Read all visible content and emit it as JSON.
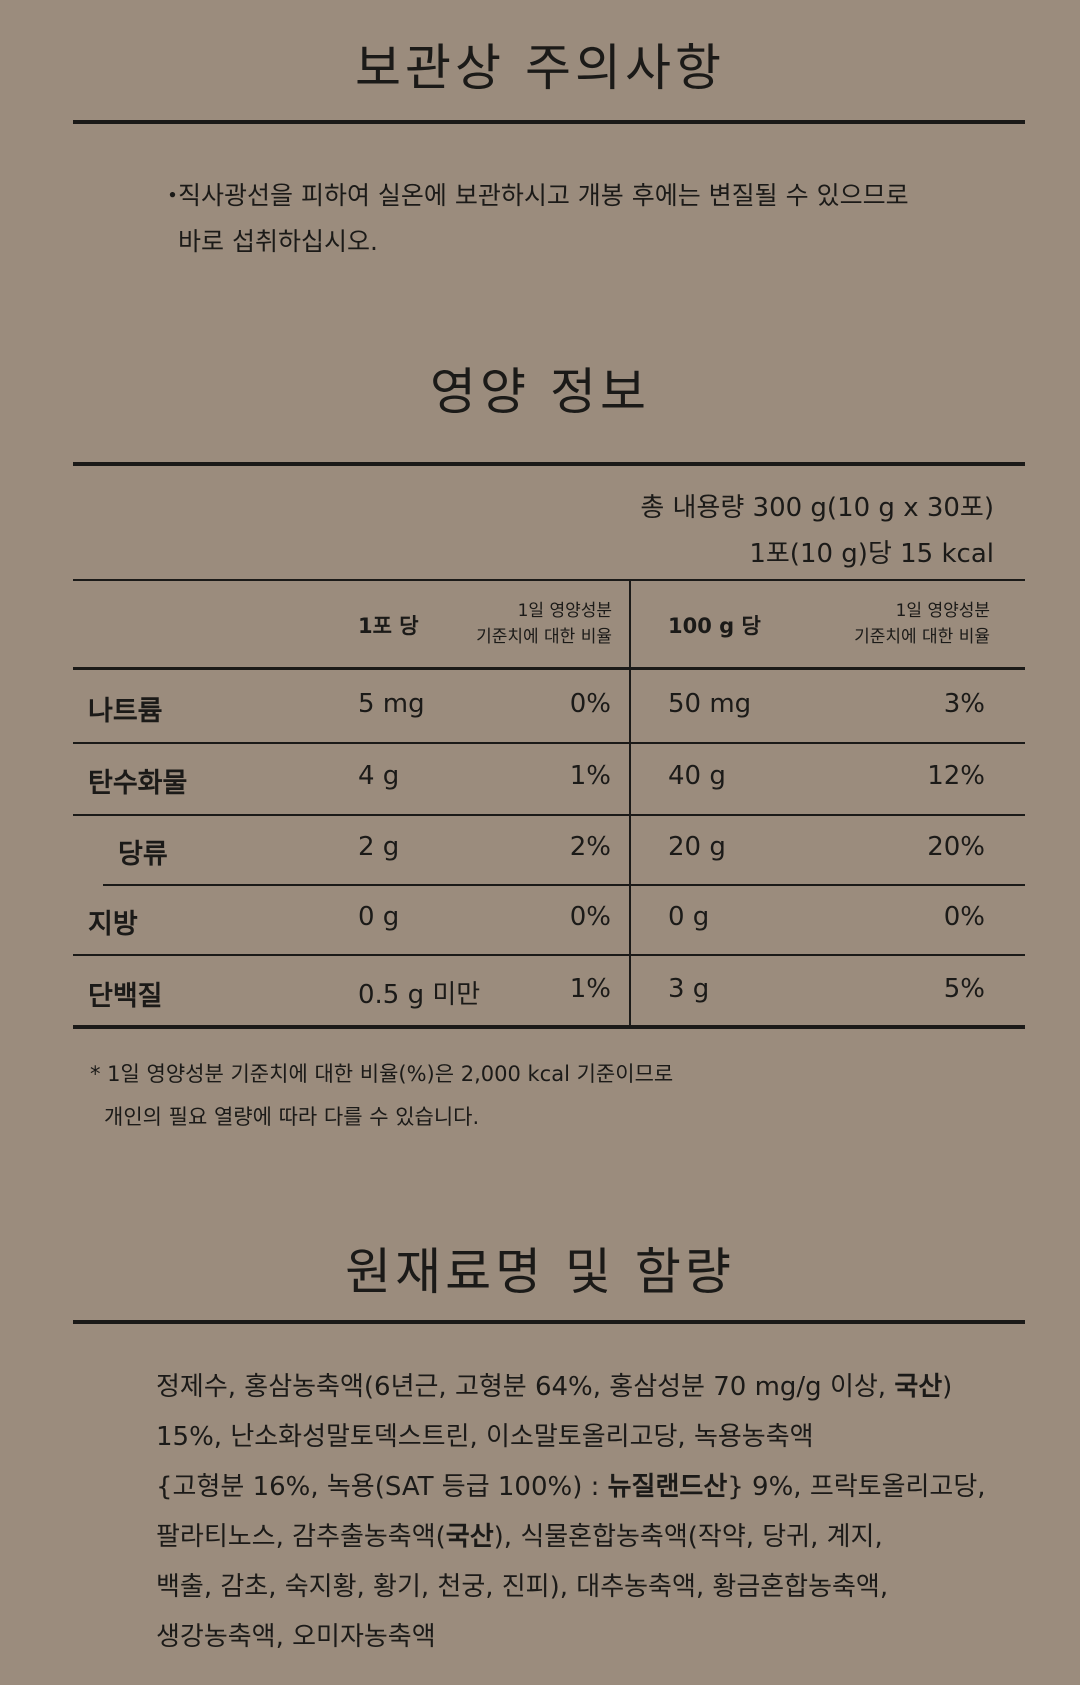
{
  "storage": {
    "title": "보관상 주의사항",
    "bullet": "・",
    "lines": [
      "직사광선을 피하여 실온에 보관하시고 개봉 후에는 변질될 수 있으므로",
      "바로 섭취하십시오."
    ]
  },
  "nutrition": {
    "title": "영양 정보",
    "total": "총 내용량 300 g(10 g x 30포)",
    "kcal": "1포(10 g)당 15 kcal",
    "headers": {
      "per_pack": "1포 당",
      "ratio1": "1일 영양성분",
      "ratio2": "기준치에 대한 비율",
      "per_100g": "100 g 당"
    },
    "rows": [
      {
        "name": "나트륨",
        "pack": "5 mg",
        "pack_pct": "0%",
        "g100": "50 mg",
        "g100_pct": "3%"
      },
      {
        "name": "탄수화물",
        "pack": "4 g",
        "pack_pct": "1%",
        "g100": "40 g",
        "g100_pct": "12%"
      },
      {
        "name": "당류",
        "pack": "2 g",
        "pack_pct": "2%",
        "g100": "20 g",
        "g100_pct": "20%"
      },
      {
        "name": "지방",
        "pack": "0 g",
        "pack_pct": "0%",
        "g100": "0 g",
        "g100_pct": "0%"
      },
      {
        "name": "단백질",
        "pack": "0.5 g 미만",
        "pack_pct": "1%",
        "g100": "3 g",
        "g100_pct": "5%"
      }
    ],
    "footnote": [
      "* 1일 영양성분 기준치에 대한 비율(%)은 2,000 kcal 기준이므로",
      "개인의 필요 열량에 따라 다를 수 있습니다."
    ]
  },
  "ingredients": {
    "title": "원재료명 및 함량",
    "l1a": "정제수, 홍삼농축액(6년근, 고형분 64%, 홍삼성분 70 mg/g 이상, ",
    "l1b": "국산",
    "l1c": ")",
    "l2": "15%, 난소화성말토덱스트린, 이소말토올리고당, 녹용농축액",
    "l3a": "{고형분 16%, 녹용(SAT 등급 100%) : ",
    "l3b": "뉴질랜드산",
    "l3c": "} 9%, 프락토올리고당,",
    "l4a": "팔라티노스, 감추출농축액(",
    "l4b": "국산",
    "l4c": "), 식물혼합농축액(작약, 당귀, 계지,",
    "l5": "백출, 감초, 숙지황, 황기, 천궁, 진피), 대추농축액, 황금혼합농축액,",
    "l6": "생강농축액, 오미자농축액"
  }
}
